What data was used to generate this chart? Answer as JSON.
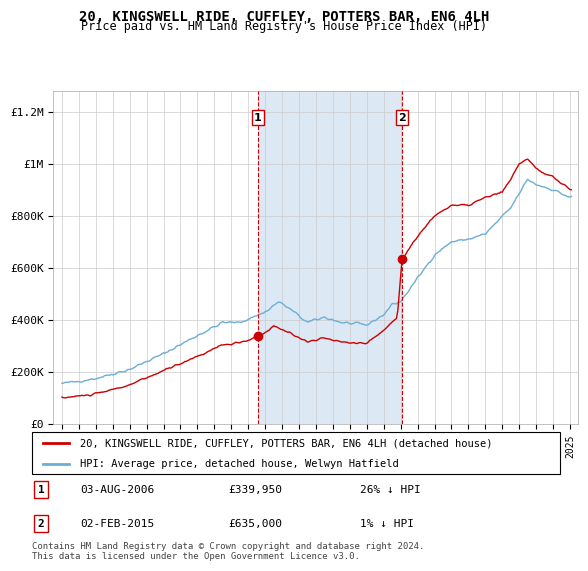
{
  "title": "20, KINGSWELL RIDE, CUFFLEY, POTTERS BAR, EN6 4LH",
  "subtitle": "Price paid vs. HM Land Registry's House Price Index (HPI)",
  "ylabel_ticks": [
    "£0",
    "£200K",
    "£400K",
    "£600K",
    "£800K",
    "£1M",
    "£1.2M"
  ],
  "ytick_values": [
    0,
    200000,
    400000,
    600000,
    800000,
    1000000,
    1200000
  ],
  "ylim": [
    0,
    1280000
  ],
  "hpi_color": "#6baed6",
  "price_color": "#cc0000",
  "vline_color": "#cc0000",
  "sale1_date_num": 2006.58,
  "sale1_price": 339950,
  "sale1_label": "1",
  "sale1_date_str": "03-AUG-2006",
  "sale1_price_str": "£339,950",
  "sale1_hpi_str": "26% ↓ HPI",
  "sale2_date_num": 2015.08,
  "sale2_price": 635000,
  "sale2_label": "2",
  "sale2_date_str": "02-FEB-2015",
  "sale2_price_str": "£635,000",
  "sale2_hpi_str": "1% ↓ HPI",
  "legend_house": "20, KINGSWELL RIDE, CUFFLEY, POTTERS BAR, EN6 4LH (detached house)",
  "legend_hpi": "HPI: Average price, detached house, Welwyn Hatfield",
  "footer": "Contains HM Land Registry data © Crown copyright and database right 2024.\nThis data is licensed under the Open Government Licence v3.0.",
  "xlim_start": 1994.5,
  "xlim_end": 2025.5,
  "span_color": "#dce9f5",
  "plot_bg": "#ffffff"
}
